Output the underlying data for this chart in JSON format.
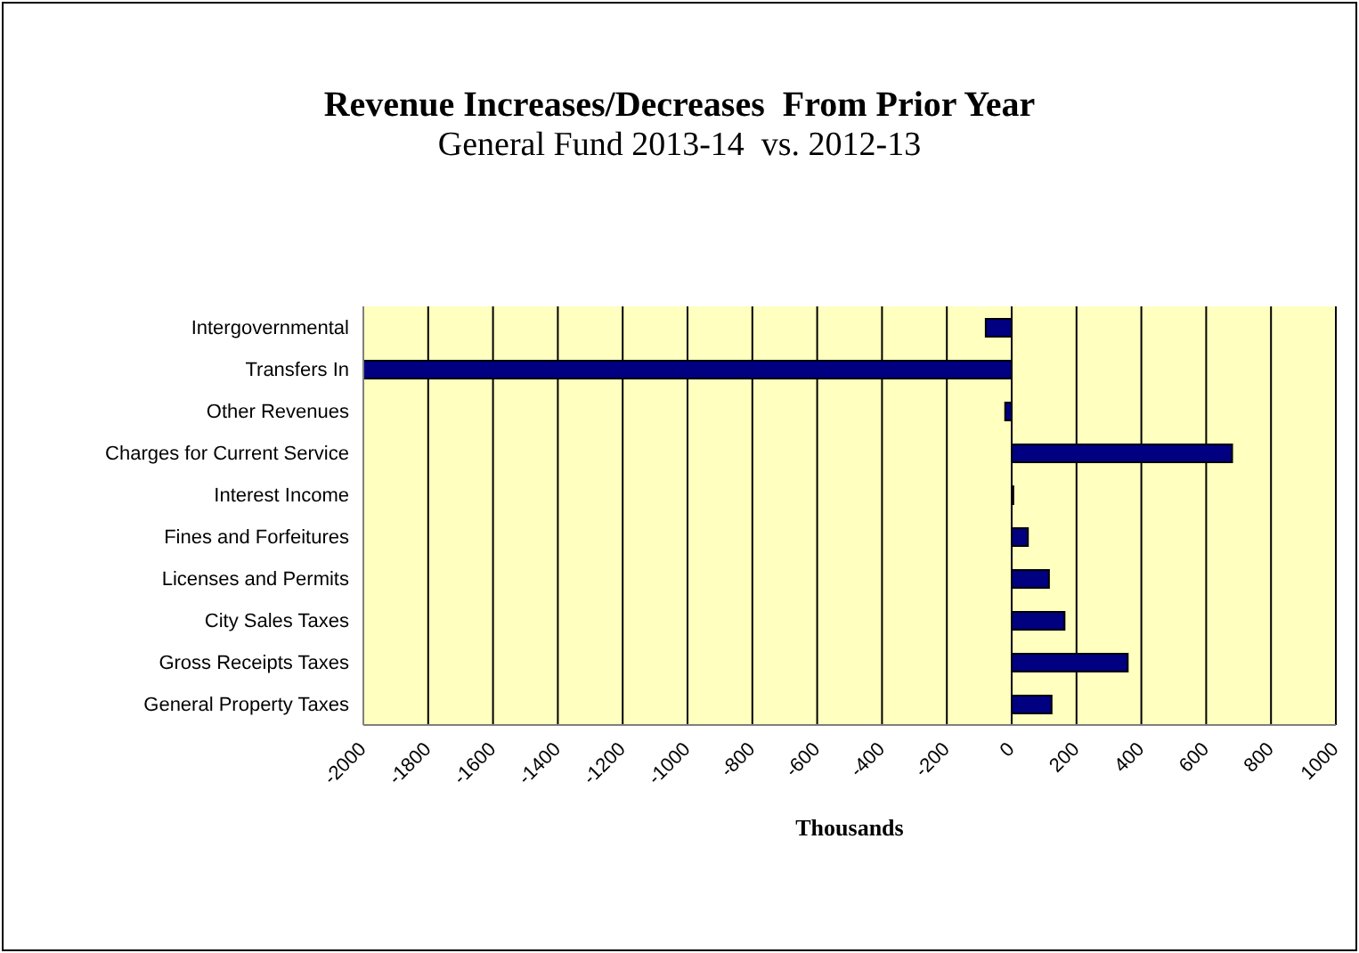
{
  "chart_data": {
    "type": "bar",
    "orientation": "horizontal",
    "title": "Revenue Increases/Decreases  From Prior Year",
    "subtitle": "General Fund 2013-14  vs. 2012-13",
    "xlabel": "Thousands",
    "categories": [
      "Intergovernmental",
      "Transfers In",
      "Other Revenues",
      "Charges for Current Service",
      "Interest Income",
      "Fines and Forfeitures",
      "Licenses and Permits",
      "City Sales Taxes",
      "Gross Receipts Taxes",
      "General Property Taxes"
    ],
    "values": [
      -80,
      -2000,
      -20,
      680,
      5,
      50,
      115,
      163,
      358,
      123
    ],
    "color": "#000080",
    "xlim": [
      -2000,
      1000
    ],
    "xticks": [
      -2000,
      -1800,
      -1600,
      -1400,
      -1200,
      -1000,
      -800,
      -600,
      -400,
      -200,
      0,
      200,
      400,
      600,
      800,
      1000
    ],
    "grid": "x"
  }
}
